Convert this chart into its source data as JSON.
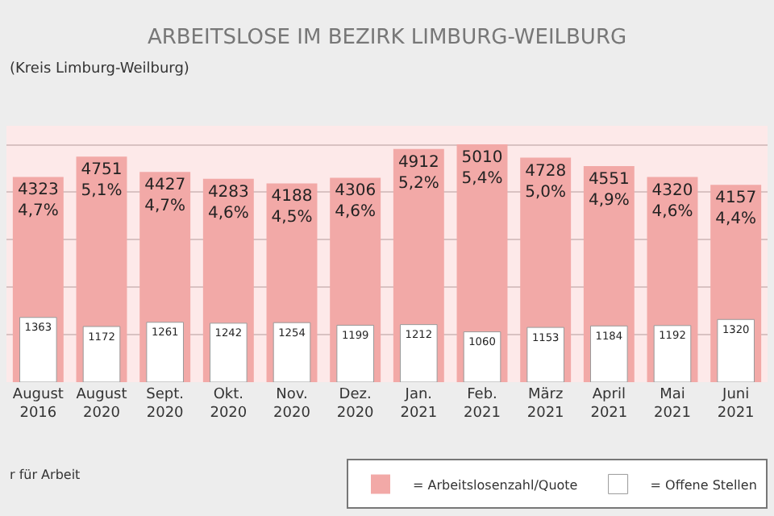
{
  "chart_data": {
    "type": "bar",
    "title": "ARBEITSLOSE IM BEZIRK LIMBURG-WEILBURG",
    "subtitle": "(Kreis Limburg-Weilburg)",
    "categories": [
      "August\n2016",
      "August\n2020",
      "Sept.\n2020",
      "Okt.\n2020",
      "Nov.\n2020",
      "Dez.\n2020",
      "Jan.\n2021",
      "Feb.\n2021",
      "März\n2021",
      "April\n2021",
      "Mai\n2021",
      "Juni\n2021"
    ],
    "series": [
      {
        "name": "= Arbeitslosenzahl/Quote",
        "color": "#f2a9a7",
        "values": [
          4323,
          4751,
          4427,
          4283,
          4188,
          4306,
          4912,
          5010,
          4728,
          4551,
          4320,
          4157
        ],
        "value_labels": [
          "4323\n4,7%",
          "4751\n5,1%",
          "4427\n4,7%",
          "4283\n4,6%",
          "4188\n4,5%",
          "4306\n4,6%",
          "4912\n5,2%",
          "5010\n5,4%",
          "4728\n5,0%",
          "4551\n4,9%",
          "4320\n4,6%",
          "4157\n4,4%"
        ]
      },
      {
        "name": "= Offene Stellen",
        "color": "#ffffff",
        "values": [
          1363,
          1172,
          1261,
          1242,
          1254,
          1199,
          1212,
          1060,
          1153,
          1184,
          1192,
          1320
        ],
        "value_labels": [
          "1363",
          "1172",
          "1261",
          "1242",
          "1254",
          "1199",
          "1212",
          "1060",
          "1153",
          "1184",
          "1192",
          "1320"
        ]
      }
    ],
    "ylim": [
      0,
      5400
    ],
    "yticks": [
      {
        "value": 1000,
        "label": null
      },
      {
        "value": 2000,
        "label": null
      },
      {
        "value": 3000,
        "label": null
      },
      {
        "value": 4000,
        "label": null
      },
      {
        "value": 5000,
        "label": null
      }
    ],
    "grid": "y",
    "legend": "bottom right",
    "tick_labels": "x",
    "annotations": [
      "r für Arbeit"
    ]
  }
}
